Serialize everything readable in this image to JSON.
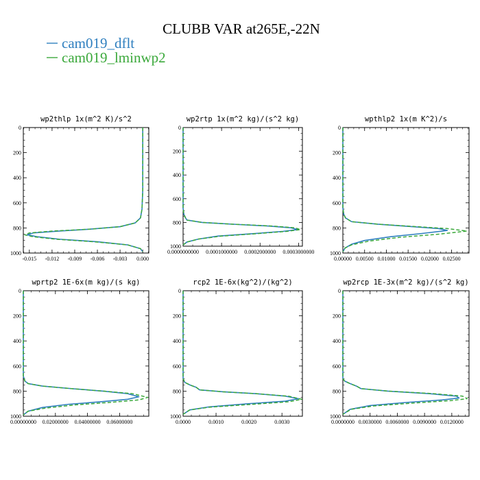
{
  "figure": {
    "title": "CLUBB VAR at265E,-22N",
    "legend": [
      {
        "label": "cam019_dflt",
        "color": "#2f7fbf",
        "dash": "solid"
      },
      {
        "label": "cam019_lminwp2",
        "color": "#3aa83a",
        "dash": "dashed"
      }
    ]
  },
  "chart_data": [
    {
      "type": "line",
      "title": "wp2thlp  1x(m^2 K)/s^2",
      "xlim": [
        -0.0158,
        0.0008
      ],
      "ylim": [
        1000,
        0
      ],
      "grid": false,
      "xticks": [
        -0.015,
        -0.012,
        -0.009,
        -0.006,
        -0.003,
        0.0
      ],
      "xtick_labels": [
        "-0.015",
        "-0.012",
        "-0.009",
        "-0.006",
        "-0.003",
        "0.000"
      ],
      "yticks": [
        0,
        200,
        400,
        600,
        800,
        1000
      ],
      "ytick_labels": [
        "0",
        "200",
        "400",
        "600",
        "800",
        "1000"
      ],
      "series": [
        {
          "name": "cam019_dflt",
          "x": [
            0.0,
            0.0,
            0.0,
            -0.0001,
            -0.0003,
            -0.001,
            -0.003,
            -0.007,
            -0.011,
            -0.0145,
            -0.0153,
            -0.014,
            -0.011,
            -0.006,
            -0.002,
            -0.0003,
            0.0
          ],
          "y": [
            0,
            200,
            500,
            650,
            720,
            760,
            790,
            810,
            825,
            840,
            855,
            870,
            890,
            910,
            935,
            965,
            990
          ]
        },
        {
          "name": "cam019_lminwp2",
          "x": [
            0.0,
            0.0,
            0.0,
            -0.0001,
            -0.0003,
            -0.001,
            -0.003,
            -0.007,
            -0.012,
            -0.015,
            -0.0156,
            -0.0145,
            -0.0115,
            -0.0065,
            -0.002,
            -0.0003,
            0.0
          ],
          "y": [
            0,
            200,
            500,
            650,
            720,
            760,
            790,
            810,
            825,
            840,
            855,
            870,
            890,
            910,
            935,
            965,
            990
          ]
        }
      ]
    },
    {
      "type": "line",
      "title": "wp2rtp  1x(m^2 kg)/(s^2 kg)",
      "xlim": [
        0.0,
        0.00031
      ],
      "ylim": [
        1000,
        0
      ],
      "grid": false,
      "xticks": [
        0.0,
        0.0001,
        0.0002,
        0.0003
      ],
      "xtick_labels": [
        "0.0000000000",
        "0.0001000000",
        "0.0002000000",
        "0.0003000000"
      ],
      "yticks": [
        0,
        200,
        400,
        600,
        800,
        1000
      ],
      "ytick_labels": [
        "0",
        "200",
        "400",
        "600",
        "800",
        "1000"
      ],
      "series": [
        {
          "name": "cam019_dflt",
          "x": [
            0.0,
            0.0,
            0.0,
            2e-06,
            6e-06,
            1e-05,
            5e-05,
            0.00013,
            0.00022,
            0.00028,
            0.000298,
            0.00026,
            0.00018,
            9e-05,
            4e-05,
            1e-05,
            0.0
          ],
          "y": [
            0,
            300,
            680,
            730,
            760,
            780,
            800,
            815,
            830,
            845,
            860,
            875,
            895,
            915,
            940,
            965,
            990
          ]
        },
        {
          "name": "cam019_lminwp2",
          "x": [
            0.0,
            0.0,
            0.0,
            2e-06,
            6e-06,
            1e-05,
            5e-05,
            0.00013,
            0.00023,
            0.00029,
            0.000305,
            0.00027,
            0.00019,
            0.0001,
            4e-05,
            1e-05,
            0.0
          ],
          "y": [
            0,
            300,
            680,
            730,
            760,
            780,
            800,
            815,
            830,
            845,
            860,
            875,
            895,
            915,
            940,
            965,
            990
          ]
        }
      ]
    },
    {
      "type": "line",
      "title": "wpthlp2  1x(m K^2)/s",
      "xlim": [
        0.0,
        0.029
      ],
      "ylim": [
        1000,
        0
      ],
      "grid": false,
      "xticks": [
        0.0,
        0.005,
        0.01,
        0.015,
        0.02,
        0.025
      ],
      "xtick_labels": [
        "0.00000",
        "0.00500",
        "0.01000",
        "0.01500",
        "0.02000",
        "0.02500"
      ],
      "yticks": [
        0,
        200,
        400,
        600,
        800,
        1000
      ],
      "ytick_labels": [
        "0",
        "200",
        "400",
        "600",
        "800",
        "1000"
      ],
      "series": [
        {
          "name": "cam019_dflt",
          "x": [
            0.0,
            0.0,
            0.0,
            0.0002,
            0.0006,
            0.002,
            0.008,
            0.016,
            0.022,
            0.024,
            0.018,
            0.011,
            0.005,
            0.002,
            0.0005,
            0.0
          ],
          "y": [
            0,
            300,
            640,
            690,
            720,
            750,
            770,
            790,
            805,
            820,
            845,
            870,
            900,
            930,
            960,
            990
          ]
        },
        {
          "name": "cam019_lminwp2",
          "x": [
            0.0,
            0.0,
            0.0,
            0.0002,
            0.0006,
            0.002,
            0.008,
            0.017,
            0.024,
            0.0285,
            0.022,
            0.013,
            0.006,
            0.002,
            0.0005,
            0.0
          ],
          "y": [
            0,
            300,
            640,
            690,
            720,
            750,
            770,
            790,
            805,
            825,
            850,
            875,
            905,
            935,
            960,
            990
          ]
        }
      ]
    },
    {
      "type": "line",
      "title": "wprtp2  1E-6x(m kg)/(s kg)",
      "xlim": [
        0.0,
        0.0782
      ],
      "ylim": [
        1000,
        0
      ],
      "grid": false,
      "xticks": [
        0.0,
        0.02,
        0.04,
        0.06
      ],
      "xtick_labels": [
        "0.00000000",
        "0.02000000",
        "0.04000000",
        "0.06000000"
      ],
      "yticks": [
        0,
        200,
        400,
        600,
        800,
        1000
      ],
      "ytick_labels": [
        "0",
        "200",
        "400",
        "600",
        "800",
        "1000"
      ],
      "series": [
        {
          "name": "cam019_dflt",
          "x": [
            0.0,
            0.0,
            0.0,
            0.001,
            0.003,
            0.012,
            0.03,
            0.05,
            0.065,
            0.072,
            0.065,
            0.048,
            0.028,
            0.012,
            0.003,
            0.0
          ],
          "y": [
            0,
            300,
            680,
            720,
            740,
            760,
            780,
            800,
            820,
            845,
            865,
            885,
            905,
            930,
            960,
            990
          ]
        },
        {
          "name": "cam019_lminwp2",
          "x": [
            0.0,
            0.0,
            0.0,
            0.001,
            0.003,
            0.012,
            0.03,
            0.05,
            0.068,
            0.0775,
            0.072,
            0.054,
            0.032,
            0.014,
            0.003,
            0.0
          ],
          "y": [
            0,
            300,
            680,
            720,
            740,
            760,
            780,
            800,
            820,
            850,
            870,
            890,
            910,
            935,
            960,
            990
          ]
        }
      ]
    },
    {
      "type": "line",
      "title": "rcp2  1E-6x(kg^2)/(kg^2)",
      "xlim": [
        0.0,
        0.00362
      ],
      "ylim": [
        1000,
        0
      ],
      "grid": false,
      "xticks": [
        0.0,
        0.001,
        0.002,
        0.003
      ],
      "xtick_labels": [
        "0.0000",
        "0.0010",
        "0.0020",
        "0.0030"
      ],
      "yticks": [
        0,
        200,
        400,
        600,
        800,
        1000
      ],
      "ytick_labels": [
        "0",
        "200",
        "400",
        "600",
        "800",
        "1000"
      ],
      "series": [
        {
          "name": "cam019_dflt",
          "x": [
            0.0,
            0.0,
            0.0,
            5e-05,
            0.0002,
            0.0004,
            0.0005,
            0.0012,
            0.0022,
            0.0031,
            0.0035,
            0.0031,
            0.002,
            0.0008,
            0.0002,
            0.0
          ],
          "y": [
            0,
            300,
            700,
            730,
            750,
            770,
            790,
            805,
            820,
            840,
            860,
            880,
            900,
            925,
            950,
            985
          ]
        },
        {
          "name": "cam019_lminwp2",
          "x": [
            0.0,
            0.0,
            0.0,
            5e-05,
            0.0002,
            0.0004,
            0.0005,
            0.0012,
            0.0022,
            0.0032,
            0.0036,
            0.0032,
            0.0021,
            0.0008,
            0.0002,
            0.0
          ],
          "y": [
            0,
            300,
            700,
            730,
            750,
            770,
            790,
            805,
            820,
            840,
            865,
            885,
            905,
            928,
            950,
            985
          ]
        }
      ]
    },
    {
      "type": "line",
      "title": "wp2rcp  1E-3x(m^2 kg)/(s^2 kg)",
      "xlim": [
        0.0,
        0.0139
      ],
      "ylim": [
        1000,
        0
      ],
      "grid": false,
      "xticks": [
        0.0,
        0.003,
        0.006,
        0.009,
        0.012
      ],
      "xtick_labels": [
        "0.0000000",
        "0.0030000",
        "0.0060000",
        "0.0090000",
        "0.0120000"
      ],
      "yticks": [
        0,
        200,
        400,
        600,
        800,
        1000
      ],
      "ytick_labels": [
        "0",
        "200",
        "400",
        "600",
        "800",
        "1000"
      ],
      "series": [
        {
          "name": "cam019_dflt",
          "x": [
            0.0,
            0.0,
            0.0,
            0.0002,
            0.0008,
            0.0015,
            0.002,
            0.005,
            0.0095,
            0.0125,
            0.0128,
            0.011,
            0.007,
            0.003,
            0.0008,
            0.0
          ],
          "y": [
            0,
            300,
            700,
            720,
            740,
            760,
            780,
            800,
            820,
            840,
            855,
            870,
            890,
            915,
            945,
            985
          ]
        },
        {
          "name": "cam019_lminwp2",
          "x": [
            0.0,
            0.0,
            0.0,
            0.0002,
            0.0008,
            0.0015,
            0.002,
            0.005,
            0.01,
            0.0132,
            0.0137,
            0.012,
            0.0078,
            0.0034,
            0.0009,
            0.0
          ],
          "y": [
            0,
            300,
            700,
            720,
            740,
            760,
            780,
            800,
            820,
            840,
            860,
            875,
            895,
            918,
            945,
            985
          ]
        }
      ]
    }
  ]
}
